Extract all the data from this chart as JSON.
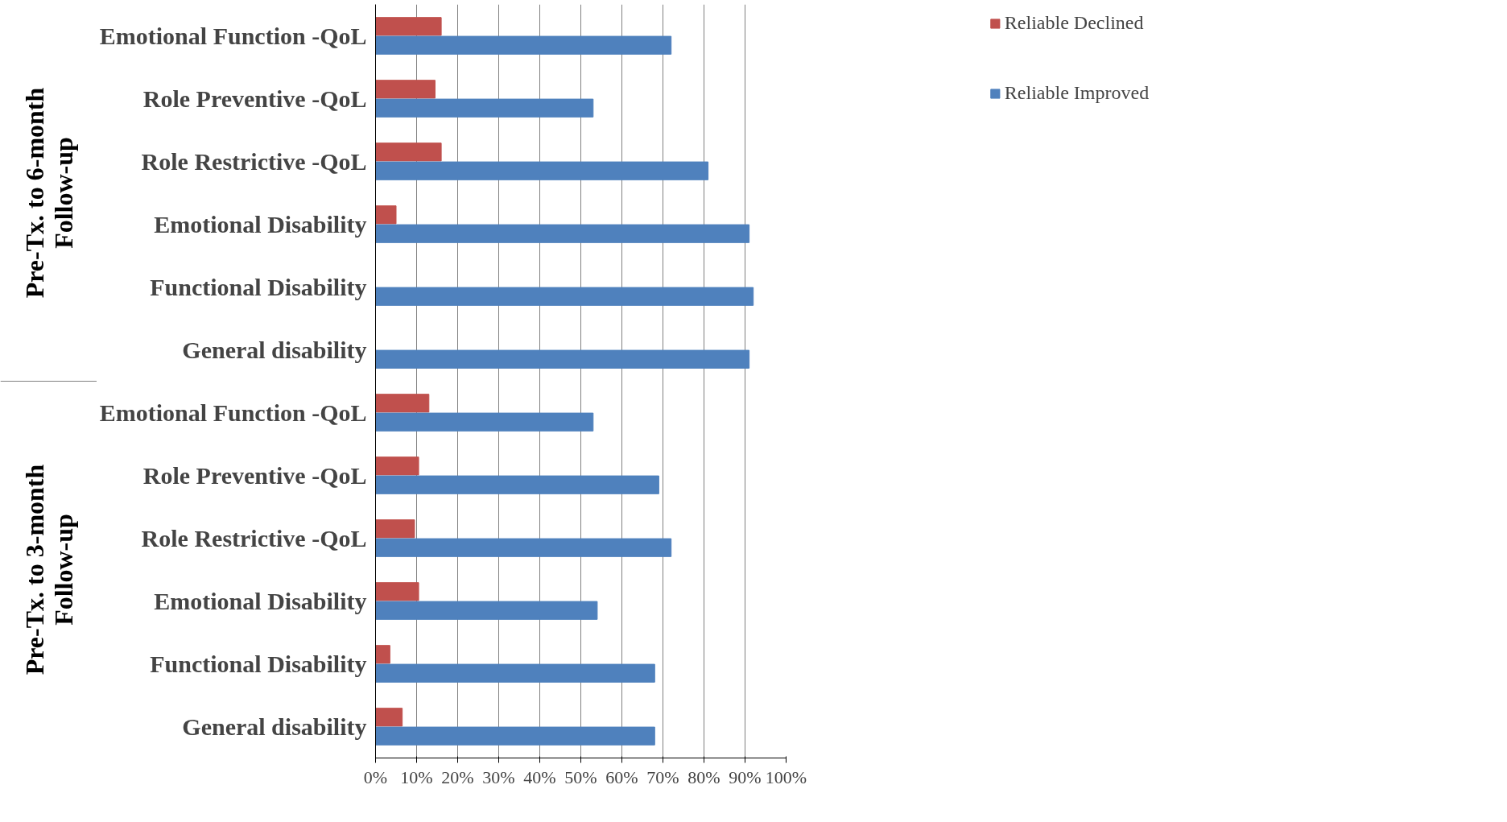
{
  "chart_data": {
    "type": "bar",
    "orientation": "horizontal",
    "categories": [
      "Emotional Function -QoL",
      "Role Preventive -QoL",
      "Role Restrictive -QoL",
      "Emotional Disability",
      "Functional Disability",
      "General disability",
      "Emotional Function -QoL",
      "Role Preventive -QoL",
      "Role Restrictive -QoL",
      "Emotional Disability",
      "Functional Disability",
      "General disability"
    ],
    "series": [
      {
        "name": "Reliable Declined",
        "color": "#c0504d",
        "values": [
          16,
          14.5,
          16,
          5,
          0,
          0,
          13,
          10.5,
          9.5,
          10.5,
          3.5,
          6.5
        ]
      },
      {
        "name": "Reliable Improved",
        "color": "#4f81bd",
        "values": [
          72,
          53,
          81,
          91,
          92,
          91,
          53,
          69,
          72,
          54,
          68,
          68
        ]
      }
    ],
    "xlim": [
      0,
      100
    ],
    "xticks": [
      {
        "value": 0,
        "label": "0%"
      },
      {
        "value": 10,
        "label": "10%"
      },
      {
        "value": 20,
        "label": "20%"
      },
      {
        "value": 30,
        "label": "30%"
      },
      {
        "value": 40,
        "label": "40%"
      },
      {
        "value": 50,
        "label": "50%"
      },
      {
        "value": 60,
        "label": "60%"
      },
      {
        "value": 70,
        "label": "70%"
      },
      {
        "value": 80,
        "label": "80%"
      },
      {
        "value": 90,
        "label": "90%"
      },
      {
        "value": 100,
        "label": "100%"
      }
    ],
    "annotations": [
      "Pre-Tx. to 6-month\nFollow-up",
      "Pre-Tx. to 3-month\nFollow-up"
    ],
    "grid": "x",
    "legend": "top right"
  }
}
